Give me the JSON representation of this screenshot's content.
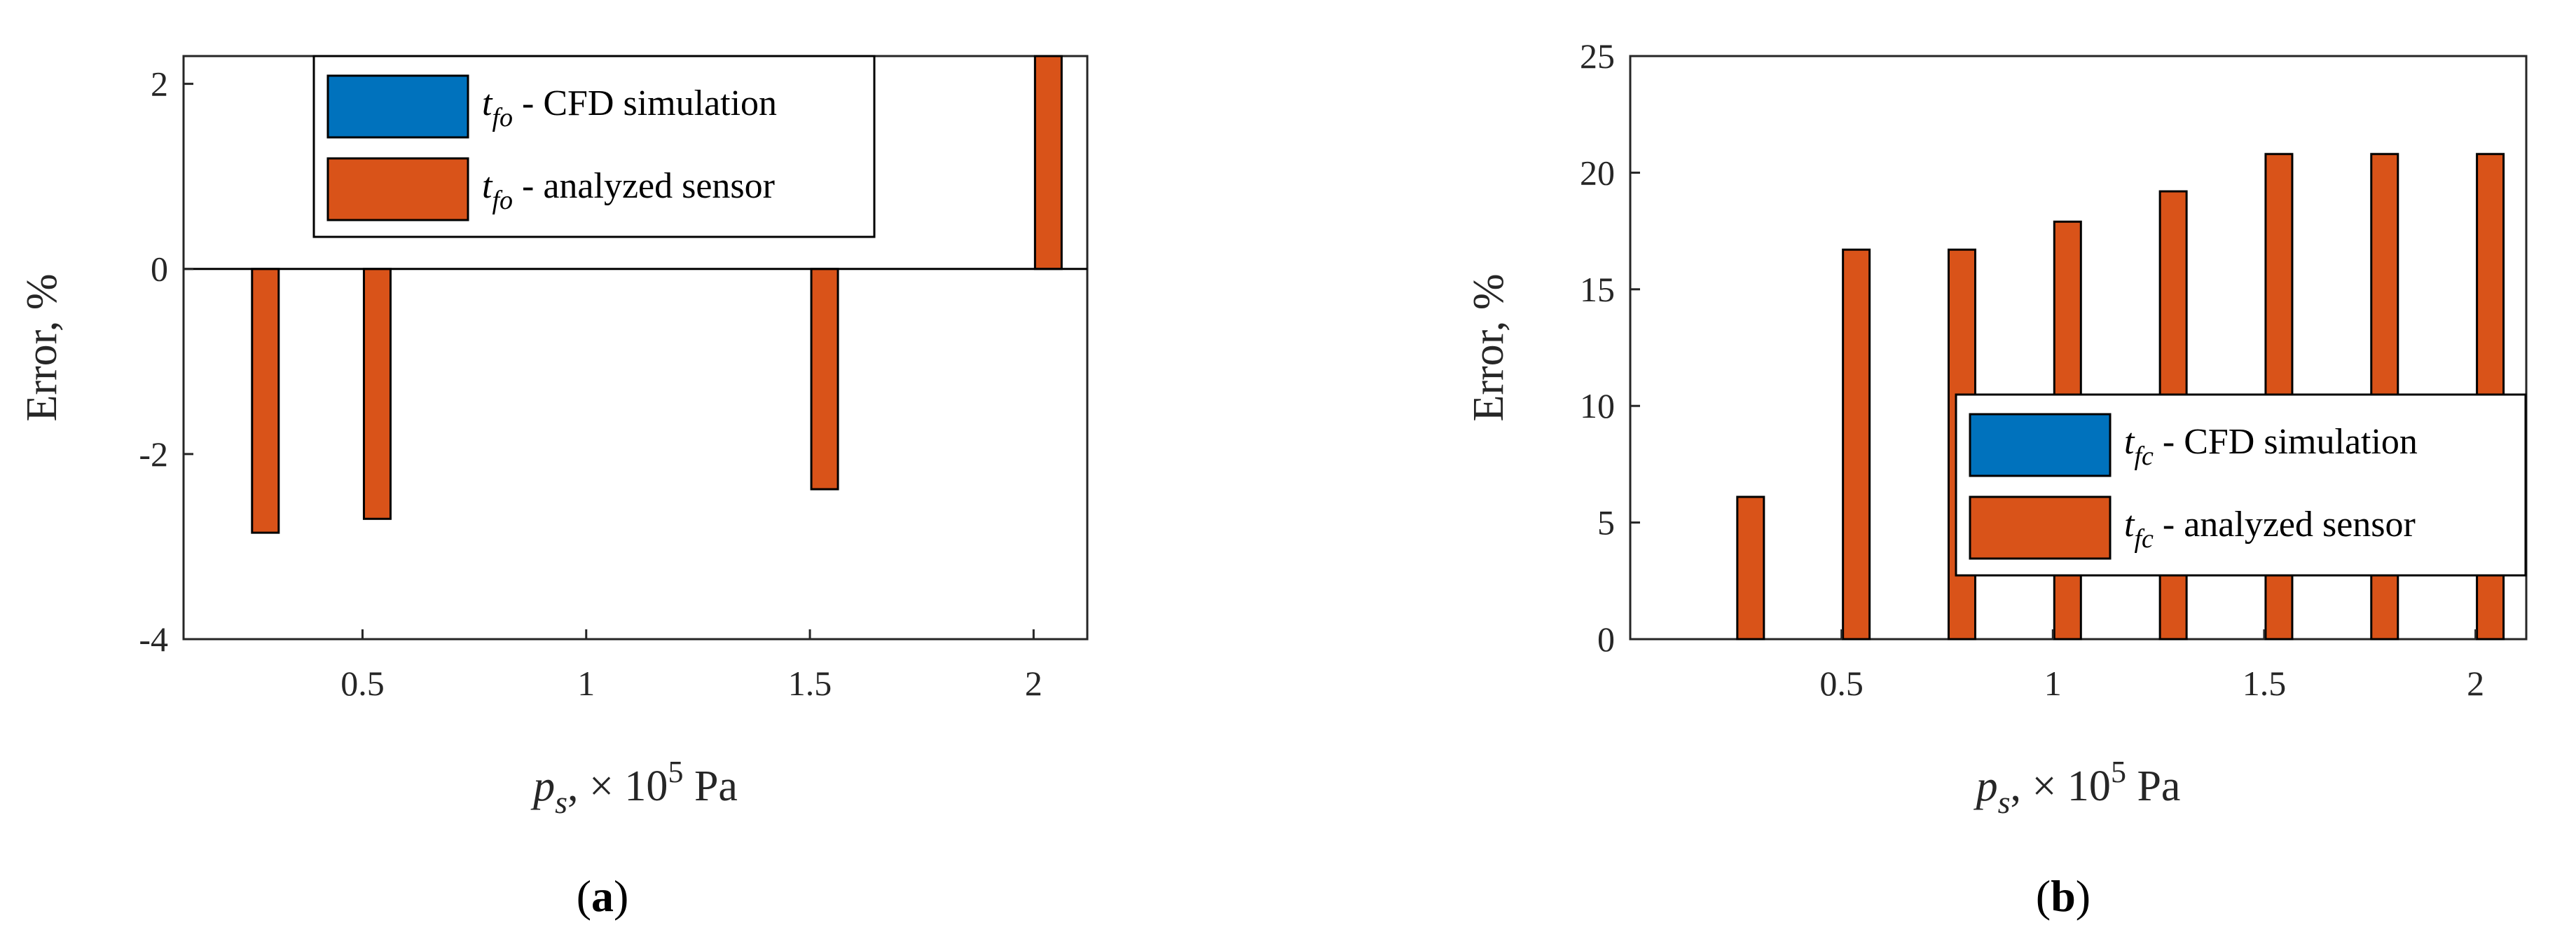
{
  "colors": {
    "cfd": "#0072BD",
    "sensor": "#D95319",
    "axis": "#262626"
  },
  "chart_data": [
    {
      "type": "bar",
      "panel_label": "a",
      "x": [
        0.25,
        0.5,
        0.75,
        1.0,
        1.25,
        1.5,
        1.75,
        2.0
      ],
      "xticks": [
        0.5,
        1,
        1.5,
        2
      ],
      "xtick_labels": [
        "0.5",
        "1",
        "1.5",
        "2"
      ],
      "xlim": [
        0.1,
        2.12
      ],
      "ylim": [
        -4,
        2.3
      ],
      "yticks": [
        -4,
        -2,
        0,
        2
      ],
      "ytick_labels": [
        "-4",
        "-2",
        "0",
        "2"
      ],
      "xlabel": {
        "var": "p",
        "sub": "s",
        "rest": ", × 10",
        "sup": "5",
        "unit": " Pa"
      },
      "ylabel": "Error, %",
      "series": [
        {
          "name": "CFD simulation",
          "symbol": "t",
          "sub": "fo",
          "color_key": "cfd",
          "values": [
            0,
            0,
            0,
            0,
            0,
            0,
            0,
            0
          ]
        },
        {
          "name": "analyzed sensor",
          "symbol": "t",
          "sub": "fo",
          "color_key": "sensor",
          "values": [
            -2.85,
            -2.7,
            0,
            0,
            0,
            -2.38,
            0,
            2.35
          ]
        }
      ],
      "legend_placement": "top-center"
    },
    {
      "type": "bar",
      "panel_label": "b",
      "x": [
        0.25,
        0.5,
        0.75,
        1.0,
        1.25,
        1.5,
        1.75,
        2.0
      ],
      "xticks": [
        0.5,
        1,
        1.5,
        2
      ],
      "xtick_labels": [
        "0.5",
        "1",
        "1.5",
        "2"
      ],
      "xlim": [
        0.0,
        2.12
      ],
      "ylim": [
        0,
        25
      ],
      "yticks": [
        0,
        5,
        10,
        15,
        20,
        25
      ],
      "ytick_labels": [
        "0",
        "5",
        "10",
        "15",
        "20",
        "25"
      ],
      "xlabel": {
        "var": "p",
        "sub": "s",
        "rest": ", × 10",
        "sup": "5",
        "unit": " Pa"
      },
      "ylabel": "Error, %",
      "series": [
        {
          "name": "CFD simulation",
          "symbol": "t",
          "sub": "fc",
          "color_key": "cfd",
          "values": [
            0,
            0,
            0,
            0,
            0,
            0,
            0,
            0
          ]
        },
        {
          "name": "analyzed sensor",
          "symbol": "t",
          "sub": "fc",
          "color_key": "sensor",
          "values": [
            6.1,
            16.7,
            16.7,
            17.9,
            19.2,
            20.8,
            20.8,
            20.8
          ]
        }
      ],
      "legend_placement": "middle-right"
    }
  ]
}
